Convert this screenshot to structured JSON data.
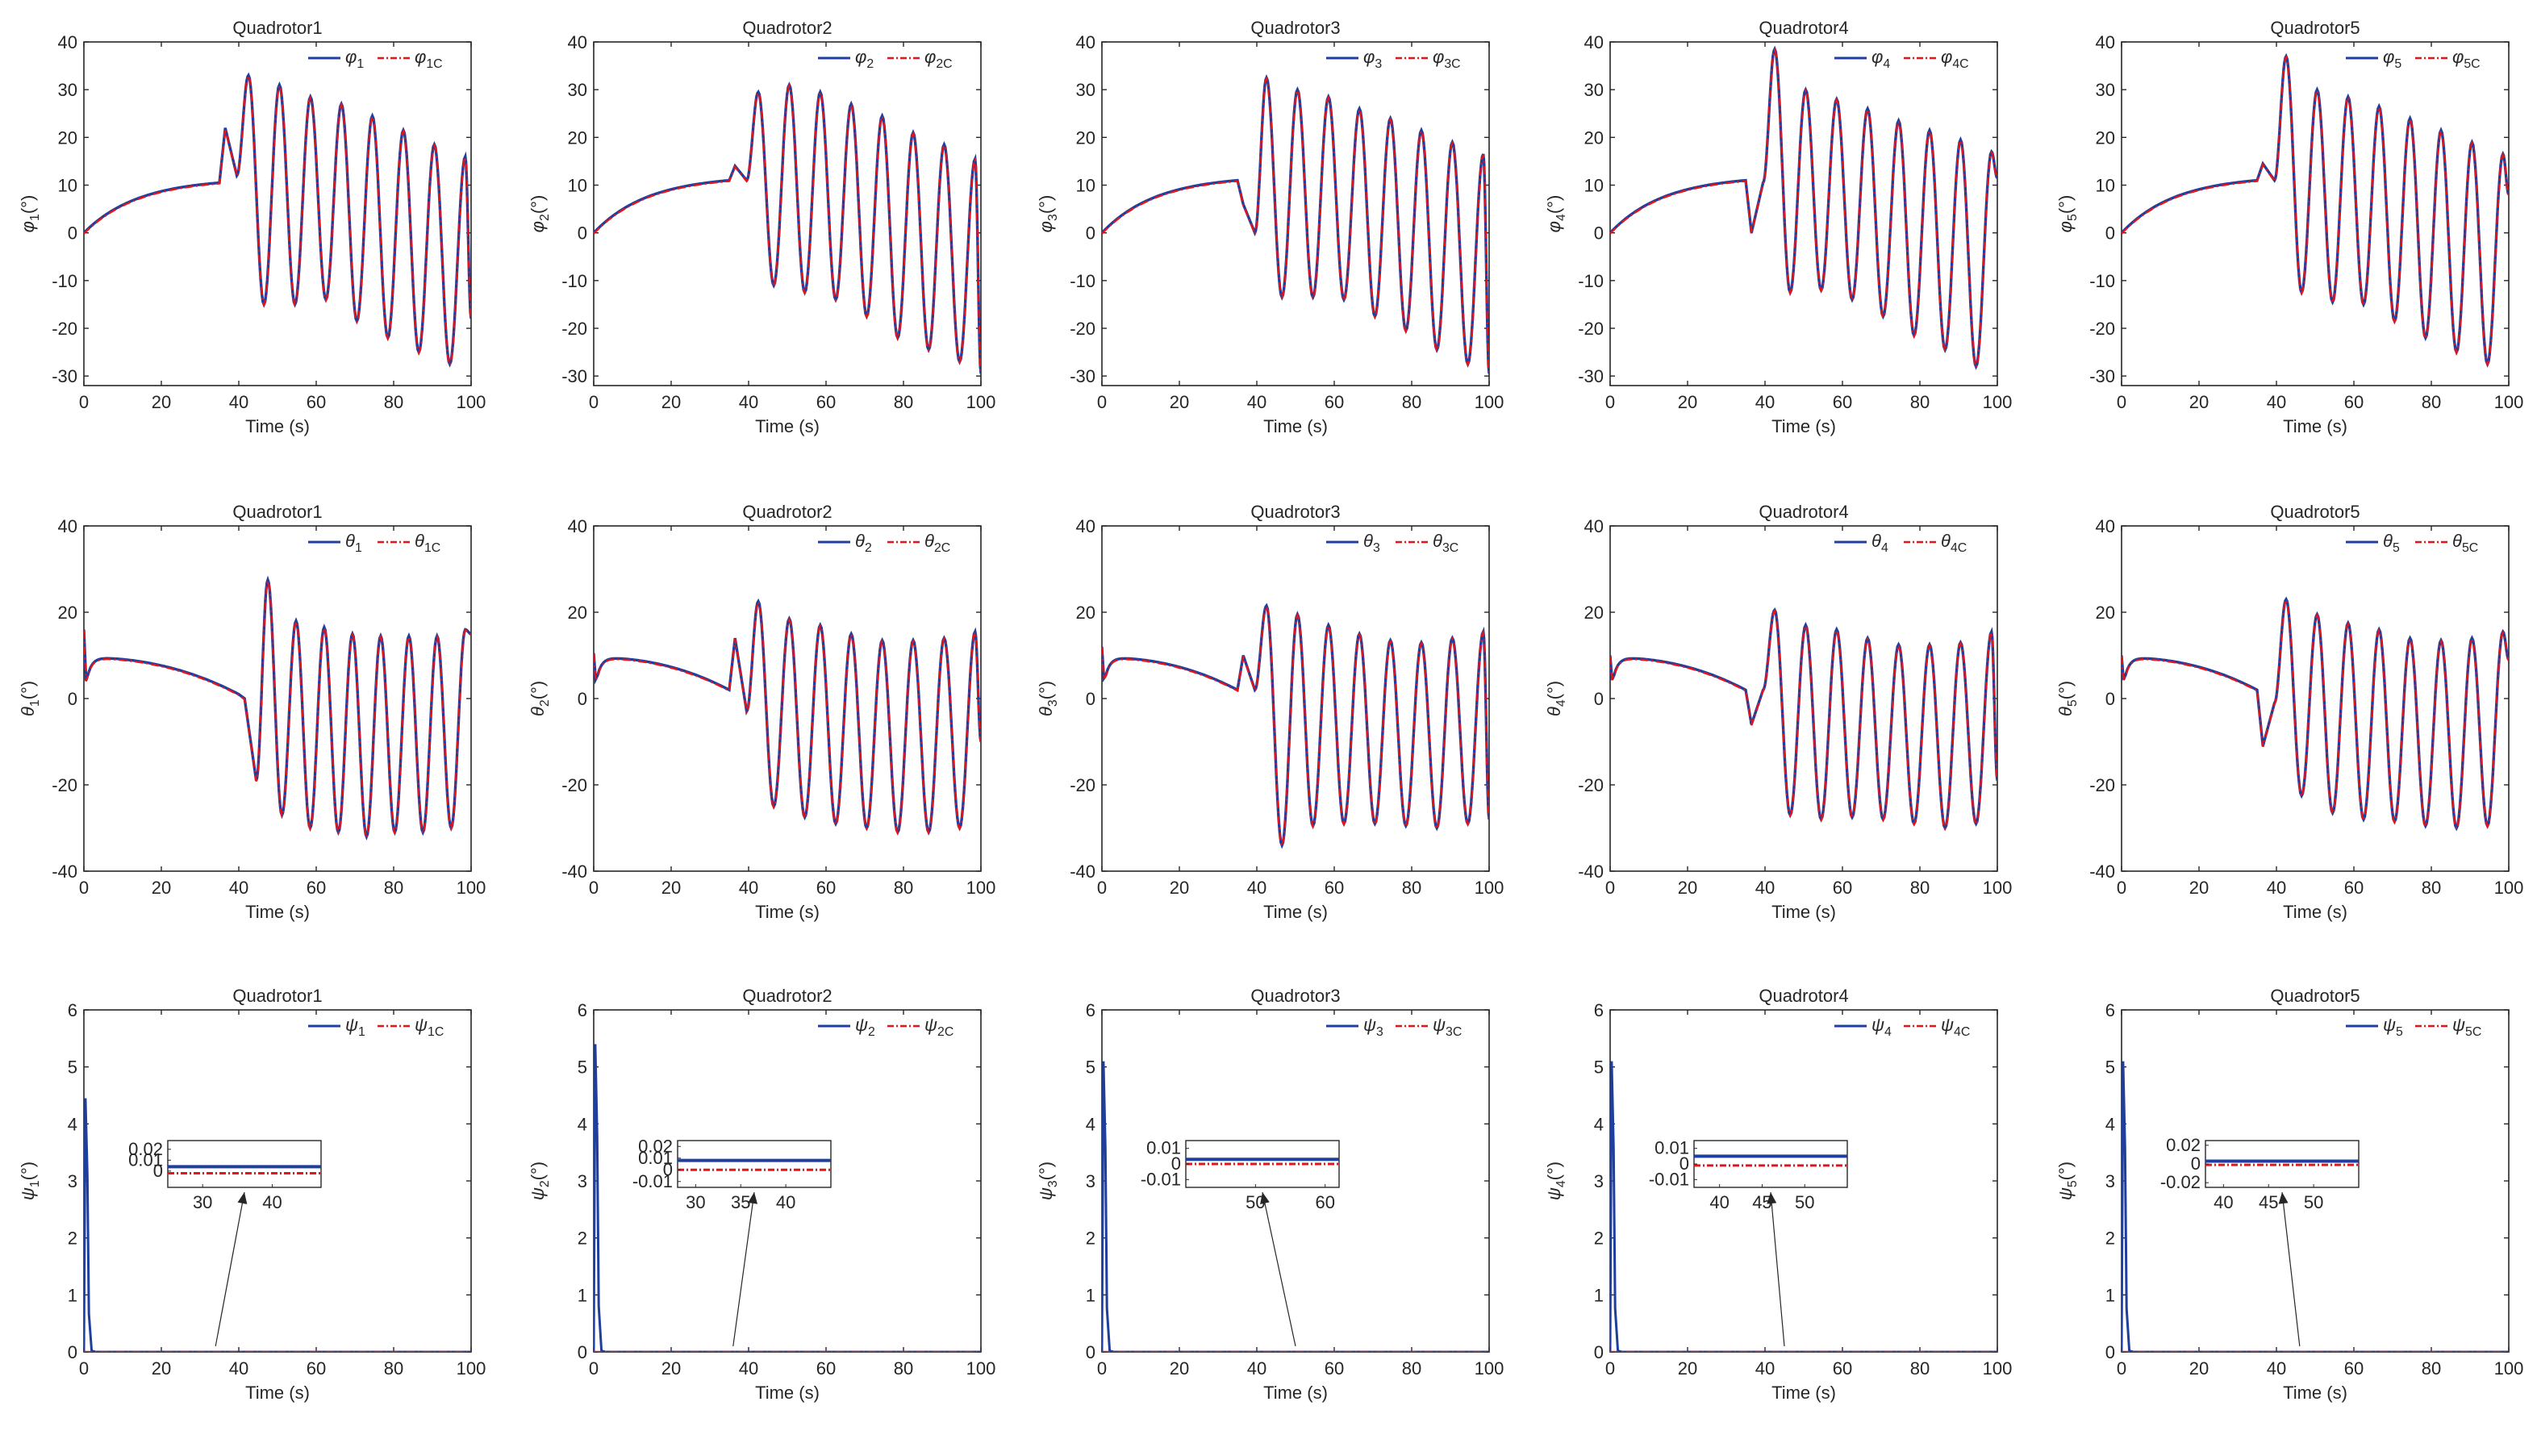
{
  "colors": {
    "measured": "#1f3f9e",
    "commanded": "#e3141a",
    "axis": "#262626",
    "grid_text": "#262626"
  },
  "chart_data": {
    "type": "line",
    "layout": "3 rows x 5 columns of subplots",
    "xlabel": "Time (s)",
    "xlim": [
      0,
      100
    ],
    "xticks": [
      0,
      20,
      40,
      60,
      80,
      100
    ],
    "titles": [
      "Quadrotor1",
      "Quadrotor2",
      "Quadrotor3",
      "Quadrotor4",
      "Quadrotor5"
    ],
    "rows": [
      {
        "variable": "phi",
        "symbol": "φ",
        "ylim": [
          -32,
          40
        ],
        "yticks": [
          -30,
          -20,
          -10,
          0,
          10,
          20,
          30,
          40
        ],
        "ylabel_unit": "(°)",
        "legend_position": "top-right",
        "panels": [
          {
            "ylabel_sub": "1",
            "legend_measured": [
              "φ",
              "1"
            ],
            "legend_commanded": [
              "φ",
              "1C"
            ],
            "ramp_end": 10.5,
            "onset": 35,
            "spike": 22,
            "dip": 12,
            "peaks": [
              33,
              31,
              28.5,
              27,
              24.5,
              21.5,
              18.5,
              16
            ],
            "troughs": [
              -15,
              -15,
              -14,
              -18.5,
              -22,
              -25,
              -27.5
            ],
            "end_value": -18
          },
          {
            "ylabel_sub": "2",
            "legend_measured": [
              "φ",
              "2"
            ],
            "legend_commanded": [
              "φ",
              "2C"
            ],
            "ramp_end": 11,
            "onset": 35,
            "spike": 14,
            "dip": 11,
            "peaks": [
              29.5,
              31,
              29.5,
              27,
              24.5,
              21,
              18.5,
              15.5
            ],
            "troughs": [
              -11,
              -12.5,
              -14,
              -17.5,
              -22,
              -24.5,
              -27
            ],
            "end_value": -29.5
          },
          {
            "ylabel_sub": "3",
            "legend_measured": [
              "φ",
              "3"
            ],
            "legend_commanded": [
              "φ",
              "3C"
            ],
            "ramp_end": 11,
            "onset": 35,
            "spike": 6,
            "dip": 0,
            "peaks": [
              32.5,
              30,
              28.5,
              26,
              24,
              21.5,
              19,
              16.5
            ],
            "troughs": [
              -13.5,
              -13.5,
              -14,
              -17.5,
              -20.5,
              -24.5,
              -27.5
            ],
            "end_value": -29.5
          },
          {
            "ylabel_sub": "4",
            "legend_measured": [
              "φ",
              "4"
            ],
            "legend_commanded": [
              "φ",
              "4C"
            ],
            "ramp_end": 11,
            "onset": 35,
            "spike": 0,
            "dip": 10.5,
            "peaks": [
              38.5,
              30,
              28,
              26,
              23.5,
              21.5,
              19.5,
              17
            ],
            "troughs": [
              -12.5,
              -12,
              -14,
              -17.5,
              -21.5,
              -24.5,
              -28
            ],
            "end_value": 11.5
          },
          {
            "ylabel_sub": "5",
            "legend_measured": [
              "φ",
              "5"
            ],
            "legend_commanded": [
              "φ",
              "5C"
            ],
            "ramp_end": 11,
            "onset": 35,
            "spike": 14.5,
            "dip": 11,
            "peaks": [
              37,
              30,
              28.5,
              26.5,
              24,
              21.5,
              19,
              16.5
            ],
            "troughs": [
              -12.5,
              -14.5,
              -15,
              -18.5,
              -22,
              -25,
              -27.5
            ],
            "end_value": 8
          }
        ]
      },
      {
        "variable": "theta",
        "symbol": "θ",
        "ylim": [
          -40,
          40
        ],
        "yticks": [
          -40,
          -20,
          0,
          20,
          40
        ],
        "ylabel_unit": "(°)",
        "legend_position": "top-right",
        "panels": [
          {
            "ylabel_sub": "1",
            "legend_measured": [
              "θ",
              "1"
            ],
            "legend_commanded": [
              "θ",
              "1C"
            ],
            "initial": 16,
            "hump": 9.5,
            "onset_value": 1,
            "onset": 40,
            "spike": 0,
            "dip": -19,
            "peaks": [
              27.5,
              18,
              16.5,
              15,
              14.5,
              14.5,
              14.5,
              16
            ],
            "troughs": [
              -27,
              -30,
              -31,
              -32,
              -31,
              -31,
              -30
            ],
            "end_value": 15
          },
          {
            "ylabel_sub": "2",
            "legend_measured": [
              "θ",
              "2"
            ],
            "legend_commanded": [
              "θ",
              "2C"
            ],
            "initial": 10.5,
            "hump": 9.5,
            "onset_value": 2,
            "onset": 35,
            "spike": 14,
            "dip": -3,
            "peaks": [
              22.5,
              18.5,
              17,
              15,
              13.5,
              13.5,
              14,
              15.5
            ],
            "troughs": [
              -25,
              -27.5,
              -29,
              -30,
              -31,
              -31,
              -30
            ],
            "end_value": -10
          },
          {
            "ylabel_sub": "3",
            "legend_measured": [
              "θ",
              "3"
            ],
            "legend_commanded": [
              "θ",
              "3C"
            ],
            "initial": 12,
            "hump": 9.5,
            "onset_value": 2,
            "onset": 35,
            "spike": 10,
            "dip": 2,
            "peaks": [
              21.5,
              19.5,
              17,
              15,
              13.5,
              13,
              14,
              15.5
            ],
            "troughs": [
              -34,
              -29.5,
              -29,
              -29,
              -29.5,
              -30,
              -29
            ],
            "end_value": -28
          },
          {
            "ylabel_sub": "4",
            "legend_measured": [
              "θ",
              "4"
            ],
            "legend_commanded": [
              "θ",
              "4C"
            ],
            "initial": 10,
            "hump": 9.5,
            "onset_value": 2,
            "onset": 35,
            "spike": -6,
            "dip": 2,
            "peaks": [
              20.5,
              17,
              16,
              14,
              12.5,
              12.5,
              13,
              15.5
            ],
            "troughs": [
              -27,
              -28,
              -27.5,
              -28,
              -29,
              -30,
              -29
            ],
            "end_value": -19
          },
          {
            "ylabel_sub": "5",
            "legend_measured": [
              "θ",
              "5"
            ],
            "legend_commanded": [
              "θ",
              "5C"
            ],
            "initial": 10,
            "hump": 9.5,
            "onset_value": 2,
            "onset": 35,
            "spike": -11,
            "dip": -1,
            "peaks": [
              23,
              19.5,
              17.5,
              16,
              14,
              13.5,
              14,
              15.5
            ],
            "troughs": [
              -22.5,
              -26.5,
              -28,
              -28.5,
              -29.5,
              -30,
              -29.5
            ],
            "end_value": 9
          }
        ]
      },
      {
        "variable": "psi",
        "symbol": "ψ",
        "ylim": [
          0,
          6
        ],
        "yticks": [
          0,
          1,
          2,
          3,
          4,
          5,
          6
        ],
        "ylabel_unit": "(°)",
        "legend_position": "top-right",
        "panels": [
          {
            "ylabel_sub": "1",
            "legend_measured": [
              "ψ",
              "1"
            ],
            "legend_commanded": [
              "ψ",
              "1C"
            ],
            "initial_peak": 4.45,
            "inset": {
              "xlim": [
                25,
                47
              ],
              "ylim": [
                -0.015,
                0.028
              ],
              "xticks": [
                30,
                40
              ],
              "yticks": [
                0.02,
                0.01,
                0
              ],
              "ytick_labels": [
                "0.02",
                "0.01",
                "0"
              ],
              "measured_value": 0.004,
              "commanded_value": -0.002
            },
            "arrow_from_x": 34,
            "arrow_from_y": 0.1
          },
          {
            "ylabel_sub": "2",
            "legend_measured": [
              "ψ",
              "2"
            ],
            "legend_commanded": [
              "ψ",
              "2C"
            ],
            "initial_peak": 5.4,
            "inset": {
              "xlim": [
                28,
                45
              ],
              "ylim": [
                -0.015,
                0.025
              ],
              "xticks": [
                30,
                35,
                40
              ],
              "yticks": [
                0.02,
                0.01,
                0,
                -0.01
              ],
              "ytick_labels": [
                "0.02",
                "0.01",
                "0",
                "-0.01"
              ],
              "measured_value": 0.008,
              "commanded_value": 0
            },
            "arrow_from_x": 36,
            "arrow_from_y": 0.1
          },
          {
            "ylabel_sub": "3",
            "legend_measured": [
              "ψ",
              "3"
            ],
            "legend_commanded": [
              "ψ",
              "3C"
            ],
            "initial_peak": 5.1,
            "inset": {
              "xlim": [
                40,
                62
              ],
              "ylim": [
                -0.015,
                0.015
              ],
              "xticks": [
                50,
                60
              ],
              "yticks": [
                0.01,
                0,
                -0.01
              ],
              "ytick_labels": [
                "0.01",
                "0",
                "-0.01"
              ],
              "measured_value": 0.003,
              "commanded_value": 0
            },
            "arrow_from_x": 50,
            "arrow_from_y": 0.1
          },
          {
            "ylabel_sub": "4",
            "legend_measured": [
              "ψ",
              "4"
            ],
            "legend_commanded": [
              "ψ",
              "4C"
            ],
            "initial_peak": 5.1,
            "inset": {
              "xlim": [
                37,
                55
              ],
              "ylim": [
                -0.015,
                0.015
              ],
              "xticks": [
                40,
                45,
                50
              ],
              "yticks": [
                0.01,
                0,
                -0.01
              ],
              "ytick_labels": [
                "0.01",
                "0",
                "-0.01"
              ],
              "measured_value": 0.005,
              "commanded_value": -0.001
            },
            "arrow_from_x": 45,
            "arrow_from_y": 0.1
          },
          {
            "ylabel_sub": "5",
            "legend_measured": [
              "ψ",
              "5"
            ],
            "legend_commanded": [
              "ψ",
              "5C"
            ],
            "initial_peak": 5.1,
            "inset": {
              "xlim": [
                38,
                55
              ],
              "ylim": [
                -0.025,
                0.025
              ],
              "xticks": [
                40,
                45,
                50
              ],
              "yticks": [
                0.02,
                0,
                -0.02
              ],
              "ytick_labels": [
                "0.02",
                "0",
                "-0.02"
              ],
              "measured_value": 0.003,
              "commanded_value": -0.001
            },
            "arrow_from_x": 46,
            "arrow_from_y": 0.1
          }
        ]
      }
    ]
  }
}
